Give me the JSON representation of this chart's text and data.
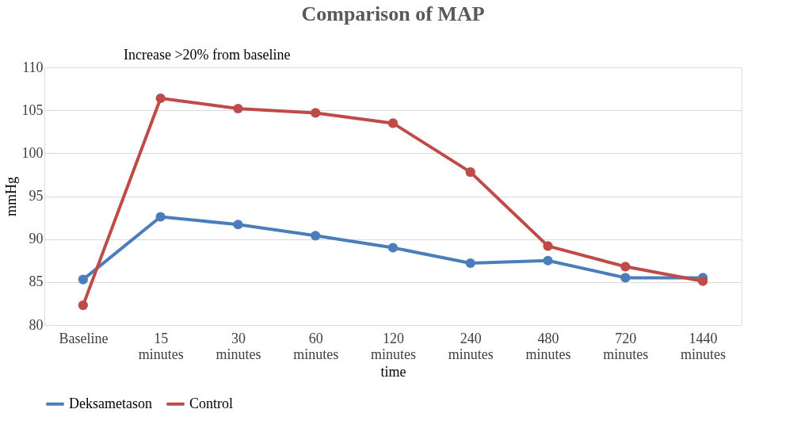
{
  "chart_data": {
    "type": "line",
    "title": "Comparison of MAP",
    "xlabel": "time",
    "ylabel": "mmHg",
    "annotations": [
      "Increase >20% from baseline"
    ],
    "categories": [
      "Baseline",
      "15 minutes",
      "30 minutes",
      "60 minutes",
      "120 minutes",
      "240 minutes",
      "480 minutes",
      "720 minutes",
      "1440 minutes"
    ],
    "series": [
      {
        "name": "Deksametason",
        "color": "#4a7ebb",
        "values": [
          85.3,
          92.6,
          91.7,
          90.4,
          89.0,
          87.2,
          87.5,
          85.5,
          85.5
        ]
      },
      {
        "name": "Control",
        "color": "#be4b48",
        "values": [
          82.3,
          106.4,
          105.2,
          104.7,
          103.5,
          97.8,
          89.2,
          86.8,
          85.1
        ]
      }
    ],
    "ylim": [
      80,
      110
    ],
    "yticks": [
      80,
      85,
      90,
      95,
      100,
      105,
      110
    ],
    "grid": "y",
    "legend": "bottom",
    "marker": "circle",
    "line_style": "solid"
  }
}
